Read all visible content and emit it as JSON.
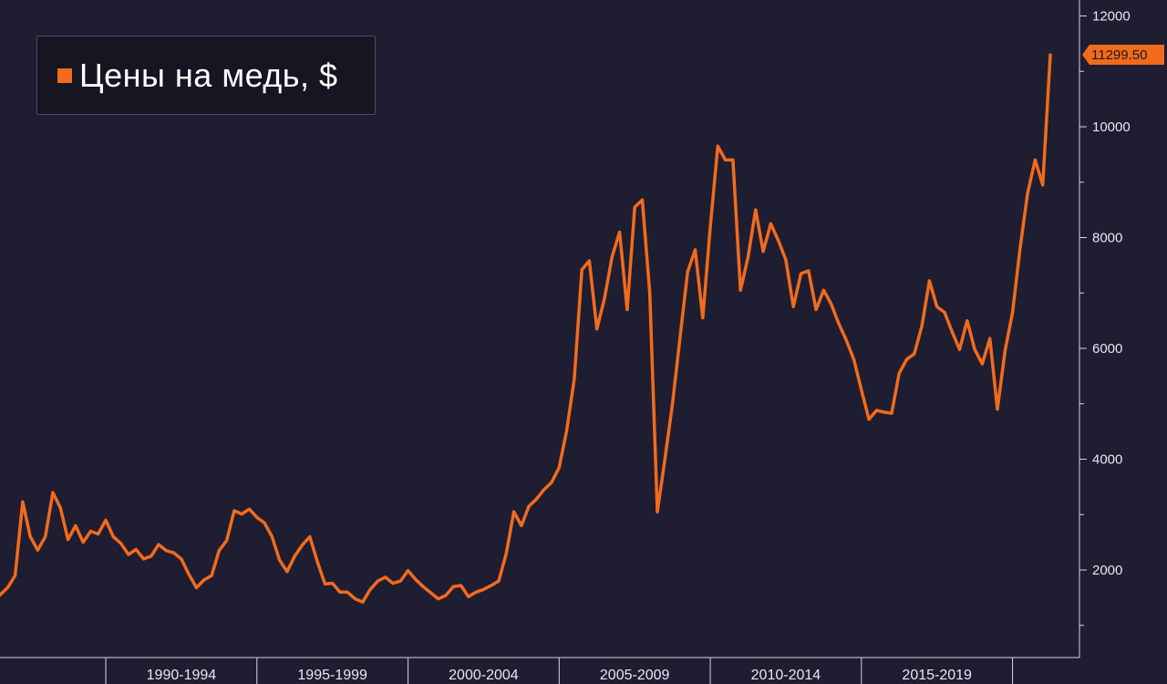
{
  "chart_data": {
    "type": "line",
    "title": "",
    "xlabel": "",
    "ylabel": "",
    "ylim": [
      0,
      12300
    ],
    "yticks": [
      2000,
      4000,
      6000,
      8000,
      10000,
      12000
    ],
    "x_period_labels": [
      "1990-1994",
      "1995-1999",
      "2000-2004",
      "2005-2009",
      "2010-2014",
      "2015-2019"
    ],
    "legend": {
      "label": "Цены на медь, $",
      "placement": "top-left"
    },
    "last_value_label": "11299.50",
    "series": [
      {
        "name": "Цены на медь, $",
        "color": "#f26b1d",
        "x_unit": "year",
        "points": [
          [
            1986.5,
            1550
          ],
          [
            1986.75,
            1680
          ],
          [
            1987.0,
            1900
          ],
          [
            1987.25,
            3230
          ],
          [
            1987.5,
            2600
          ],
          [
            1987.75,
            2360
          ],
          [
            1988.0,
            2600
          ],
          [
            1988.25,
            3400
          ],
          [
            1988.5,
            3120
          ],
          [
            1988.75,
            2550
          ],
          [
            1989.0,
            2800
          ],
          [
            1989.25,
            2500
          ],
          [
            1989.5,
            2700
          ],
          [
            1989.75,
            2650
          ],
          [
            1990.0,
            2900
          ],
          [
            1990.25,
            2600
          ],
          [
            1990.5,
            2480
          ],
          [
            1990.75,
            2280
          ],
          [
            1991.0,
            2370
          ],
          [
            1991.25,
            2200
          ],
          [
            1991.5,
            2250
          ],
          [
            1991.75,
            2460
          ],
          [
            1992.0,
            2350
          ],
          [
            1992.25,
            2310
          ],
          [
            1992.5,
            2200
          ],
          [
            1992.75,
            1920
          ],
          [
            1993.0,
            1680
          ],
          [
            1993.25,
            1820
          ],
          [
            1993.5,
            1900
          ],
          [
            1993.75,
            2350
          ],
          [
            1994.0,
            2530
          ],
          [
            1994.25,
            3070
          ],
          [
            1994.5,
            3010
          ],
          [
            1994.75,
            3100
          ],
          [
            1995.0,
            2950
          ],
          [
            1995.25,
            2850
          ],
          [
            1995.5,
            2600
          ],
          [
            1995.75,
            2180
          ],
          [
            1996.0,
            1970
          ],
          [
            1996.25,
            2250
          ],
          [
            1996.5,
            2450
          ],
          [
            1996.75,
            2600
          ],
          [
            1997.0,
            2150
          ],
          [
            1997.25,
            1750
          ],
          [
            1997.5,
            1760
          ],
          [
            1997.75,
            1600
          ],
          [
            1998.0,
            1600
          ],
          [
            1998.25,
            1480
          ],
          [
            1998.5,
            1420
          ],
          [
            1998.75,
            1650
          ],
          [
            1999.0,
            1800
          ],
          [
            1999.25,
            1870
          ],
          [
            1999.5,
            1760
          ],
          [
            1999.75,
            1800
          ],
          [
            2000.0,
            1990
          ],
          [
            2000.25,
            1830
          ],
          [
            2000.5,
            1700
          ],
          [
            2000.75,
            1590
          ],
          [
            2001.0,
            1480
          ],
          [
            2001.25,
            1540
          ],
          [
            2001.5,
            1700
          ],
          [
            2001.75,
            1720
          ],
          [
            2002.0,
            1520
          ],
          [
            2002.25,
            1600
          ],
          [
            2002.5,
            1650
          ],
          [
            2002.75,
            1720
          ],
          [
            2003.0,
            1800
          ],
          [
            2003.25,
            2300
          ],
          [
            2003.5,
            3050
          ],
          [
            2003.75,
            2800
          ],
          [
            2004.0,
            3150
          ],
          [
            2004.25,
            3280
          ],
          [
            2004.5,
            3450
          ],
          [
            2004.75,
            3580
          ],
          [
            2005.0,
            3850
          ],
          [
            2005.25,
            4520
          ],
          [
            2005.5,
            5450
          ],
          [
            2005.75,
            7420
          ],
          [
            2006.0,
            7580
          ],
          [
            2006.25,
            6350
          ],
          [
            2006.5,
            6900
          ],
          [
            2006.75,
            7650
          ],
          [
            2007.0,
            8100
          ],
          [
            2007.25,
            6700
          ],
          [
            2007.5,
            8550
          ],
          [
            2007.75,
            8680
          ],
          [
            2008.0,
            7000
          ],
          [
            2008.25,
            3050
          ],
          [
            2008.5,
            4000
          ],
          [
            2008.75,
            5000
          ],
          [
            2009.0,
            6200
          ],
          [
            2009.25,
            7380
          ],
          [
            2009.5,
            7780
          ],
          [
            2009.75,
            6550
          ],
          [
            2010.0,
            8200
          ],
          [
            2010.25,
            9650
          ],
          [
            2010.5,
            9400
          ],
          [
            2010.75,
            9400
          ],
          [
            2011.0,
            7050
          ],
          [
            2011.25,
            7650
          ],
          [
            2011.5,
            8500
          ],
          [
            2011.75,
            7750
          ],
          [
            2012.0,
            8250
          ],
          [
            2012.25,
            7950
          ],
          [
            2012.5,
            7600
          ],
          [
            2012.75,
            6750
          ],
          [
            2013.0,
            7350
          ],
          [
            2013.25,
            7400
          ],
          [
            2013.5,
            6700
          ],
          [
            2013.75,
            7050
          ],
          [
            2014.0,
            6800
          ],
          [
            2014.25,
            6450
          ],
          [
            2014.5,
            6150
          ],
          [
            2014.75,
            5800
          ],
          [
            2015.0,
            5250
          ],
          [
            2015.25,
            4720
          ],
          [
            2015.5,
            4880
          ],
          [
            2015.75,
            4850
          ],
          [
            2016.0,
            4830
          ],
          [
            2016.25,
            5550
          ],
          [
            2016.5,
            5800
          ],
          [
            2016.75,
            5900
          ],
          [
            2017.0,
            6400
          ],
          [
            2017.25,
            7220
          ],
          [
            2017.5,
            6750
          ],
          [
            2017.75,
            6650
          ],
          [
            2018.0,
            6300
          ],
          [
            2018.25,
            5980
          ],
          [
            2018.5,
            6500
          ],
          [
            2018.75,
            5980
          ],
          [
            2019.0,
            5720
          ],
          [
            2019.25,
            6180
          ],
          [
            2019.5,
            4900
          ],
          [
            2019.75,
            5950
          ],
          [
            2020.0,
            6650
          ],
          [
            2020.25,
            7800
          ],
          [
            2020.5,
            8800
          ],
          [
            2020.75,
            9400
          ],
          [
            2021.0,
            8950
          ],
          [
            2021.25,
            11299.5
          ]
        ]
      }
    ]
  }
}
